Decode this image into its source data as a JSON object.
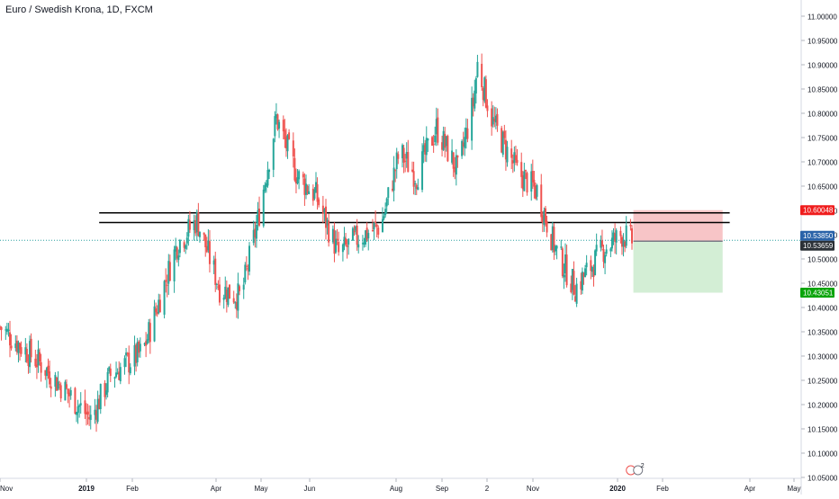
{
  "chart_data": {
    "type": "candlestick",
    "title": "Euro / Swedish Krona, 1D, FXCM",
    "symbol": "Euro / Swedish Krona",
    "interval": "1D",
    "source": "FXCM",
    "ylim": [
      10.05,
      11.0
    ],
    "y_ticks": [
      "11.00000",
      "10.95000",
      "10.90000",
      "10.85000",
      "10.80000",
      "10.75000",
      "10.70000",
      "10.65000",
      "10.60000",
      "10.55000",
      "10.50000",
      "10.45000",
      "10.40000",
      "10.35000",
      "10.30000",
      "10.25000",
      "10.20000",
      "10.15000",
      "10.10000",
      "10.05000"
    ],
    "x_tick_labels": [
      "Nov",
      "2019",
      "Feb",
      "Apr",
      "May",
      "Jun",
      "Aug",
      "Sep",
      "2",
      "Nov",
      "2020",
      "Feb",
      "Apr",
      "May"
    ],
    "bold_tick_labels": [
      "2019",
      "2020"
    ],
    "price_path": [
      {
        "date": "2018-11-01",
        "close": 10.36
      },
      {
        "date": "2018-12-01",
        "close": 10.28
      },
      {
        "date": "2018-12-20",
        "close": 10.22
      },
      {
        "date": "2019-01-04",
        "close": 10.17
      },
      {
        "date": "2019-01-18",
        "close": 10.26
      },
      {
        "date": "2019-02-10",
        "close": 10.31
      },
      {
        "date": "2019-03-06",
        "close": 10.53
      },
      {
        "date": "2019-03-20",
        "close": 10.58
      },
      {
        "date": "2019-04-05",
        "close": 10.44
      },
      {
        "date": "2019-04-20",
        "close": 10.42
      },
      {
        "date": "2019-05-02",
        "close": 10.58
      },
      {
        "date": "2019-05-15",
        "close": 10.79
      },
      {
        "date": "2019-05-30",
        "close": 10.67
      },
      {
        "date": "2019-06-12",
        "close": 10.63
      },
      {
        "date": "2019-06-28",
        "close": 10.51
      },
      {
        "date": "2019-07-10",
        "close": 10.54
      },
      {
        "date": "2019-07-28",
        "close": 10.57
      },
      {
        "date": "2019-08-10",
        "close": 10.72
      },
      {
        "date": "2019-08-22",
        "close": 10.67
      },
      {
        "date": "2019-09-05",
        "close": 10.77
      },
      {
        "date": "2019-09-20",
        "close": 10.68
      },
      {
        "date": "2019-10-01",
        "close": 10.82
      },
      {
        "date": "2019-10-04",
        "close": 10.9
      },
      {
        "date": "2019-10-15",
        "close": 10.78
      },
      {
        "date": "2019-11-01",
        "close": 10.68
      },
      {
        "date": "2019-11-15",
        "close": 10.64
      },
      {
        "date": "2019-11-28",
        "close": 10.52
      },
      {
        "date": "2019-12-12",
        "close": 10.44
      },
      {
        "date": "2020-01-01",
        "close": 10.52
      },
      {
        "date": "2020-01-14",
        "close": 10.55
      },
      {
        "date": "2020-01-21",
        "close": 10.537
      }
    ],
    "horizontal_lines": [
      {
        "y": 10.595,
        "color": "#000000"
      },
      {
        "y": 10.575,
        "color": "#000000"
      }
    ],
    "position_tool": {
      "side": "short",
      "entry": 10.53659,
      "stop": 10.60048,
      "target": 10.43051,
      "start_date": "2020-01-22",
      "end_date": "2020-03-25",
      "loss_color": "#f7c5c7",
      "profit_color": "#d3eed5"
    },
    "price_labels": [
      {
        "value": 10.60048,
        "text": "10.60048",
        "bg": "#ef1c1c",
        "fg": "#ffffff"
      },
      {
        "value": 10.5385,
        "text": "10.53850",
        "bg": "#2962a8",
        "fg": "#ffffff"
      },
      {
        "value": 10.53659,
        "text": "10.53659",
        "bg": "#2b3137",
        "fg": "#ffffff"
      },
      {
        "value": 10.43051,
        "text": "10.43051",
        "bg": "#09a409",
        "fg": "#ffffff"
      }
    ],
    "current_price": 10.5385,
    "colors": {
      "up": "#26a69a",
      "down": "#ef5350",
      "grid": "#f0f3fa",
      "axis_text": "#131722",
      "current_line": "#2aa0a0"
    },
    "event_marker": {
      "count": "2",
      "date": "2020-01-24"
    }
  }
}
